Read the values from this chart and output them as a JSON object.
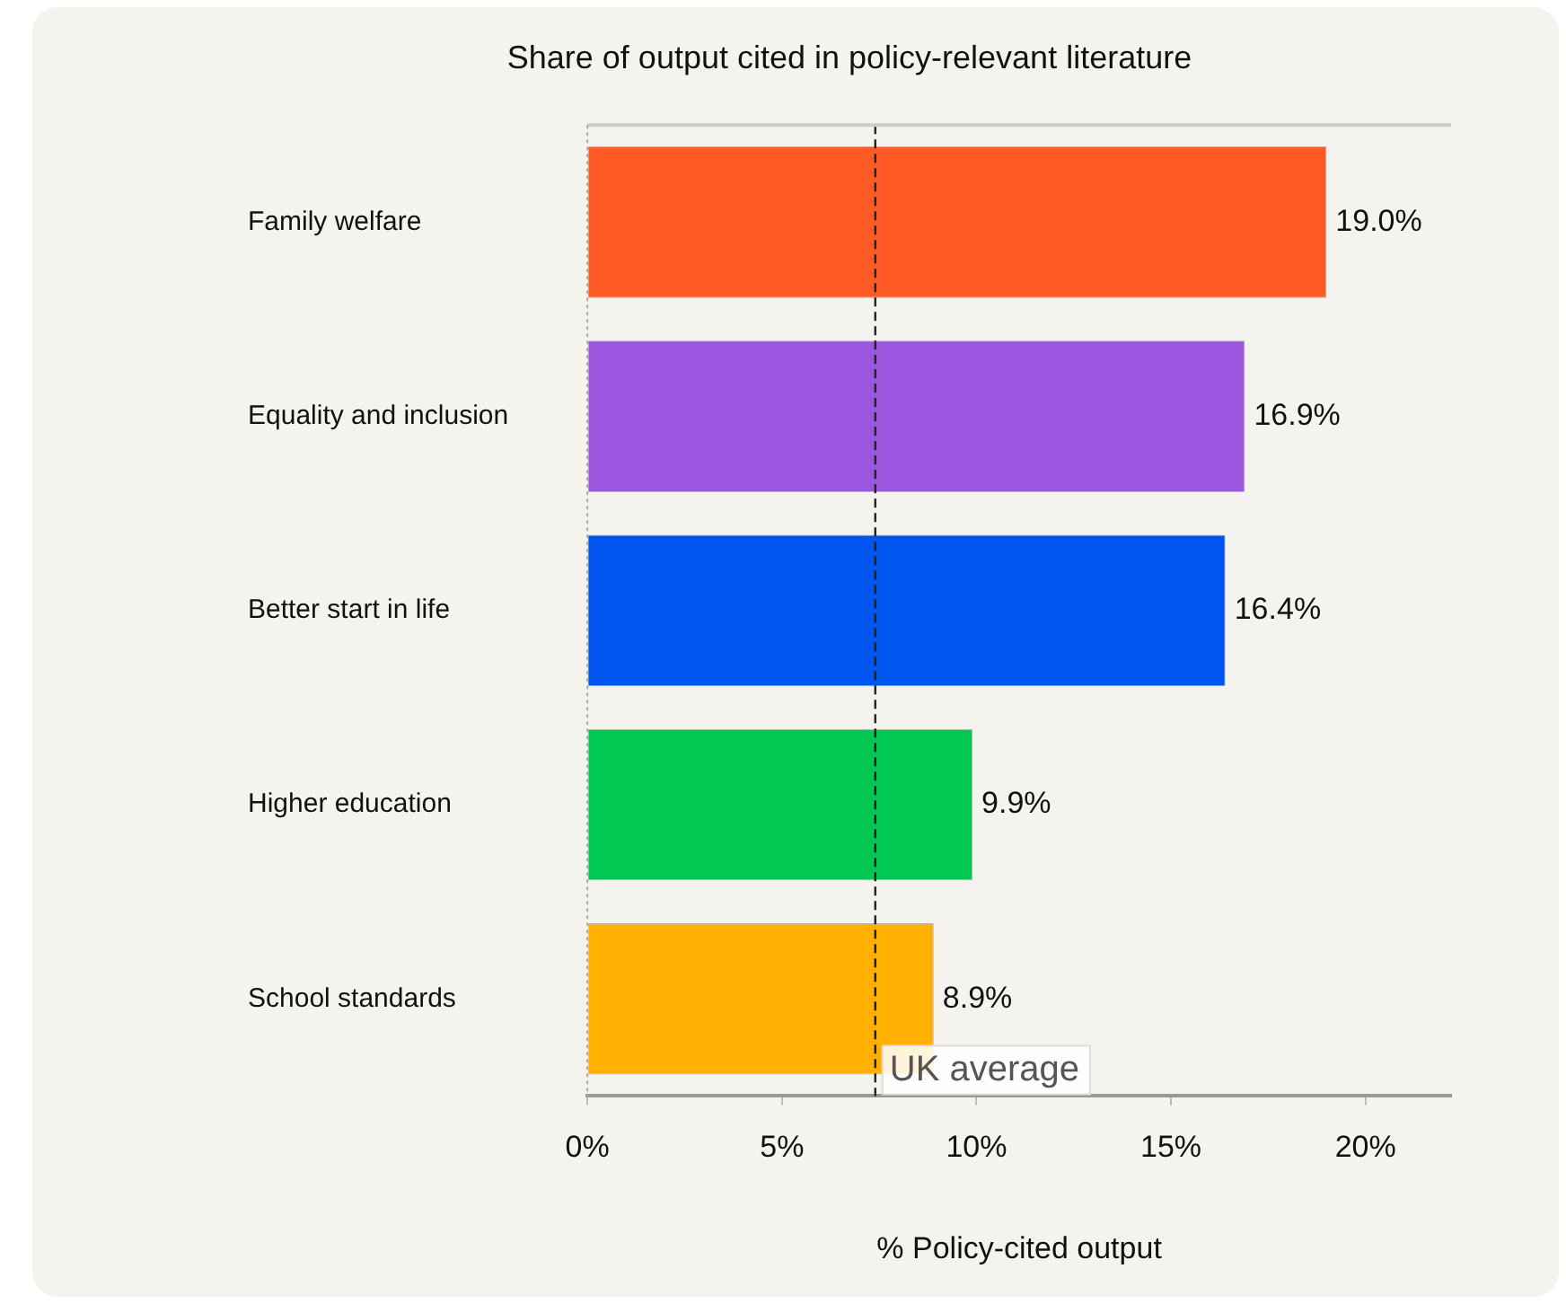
{
  "chart_data": {
    "type": "bar",
    "orientation": "horizontal",
    "title": "Share of output cited in policy-relevant literature",
    "xlabel": "% Policy-cited output",
    "categories": [
      "Family welfare",
      "Equality and inclusion",
      "Better start in life",
      "Higher education",
      "School standards"
    ],
    "values": [
      19.0,
      16.9,
      16.4,
      9.9,
      8.9
    ],
    "colors": [
      "#ff5a26",
      "#9b57e0",
      "#0055f0",
      "#00c853",
      "#ffb000"
    ],
    "value_labels": [
      "19.0%",
      "16.9%",
      "16.4%",
      "9.9%",
      "8.9%"
    ],
    "xlim": [
      0,
      22.2
    ],
    "xticks": [
      {
        "value": 0,
        "label": "0%"
      },
      {
        "value": 5,
        "label": "5%"
      },
      {
        "value": 10,
        "label": "10%"
      },
      {
        "value": 15,
        "label": "15%"
      },
      {
        "value": 20,
        "label": "20%"
      }
    ],
    "ref_lines": [
      {
        "axis": "x",
        "value": 7.4,
        "label": "UK average",
        "color": "#222222",
        "line_style": "dashed"
      }
    ],
    "grid": false,
    "legend": false
  }
}
